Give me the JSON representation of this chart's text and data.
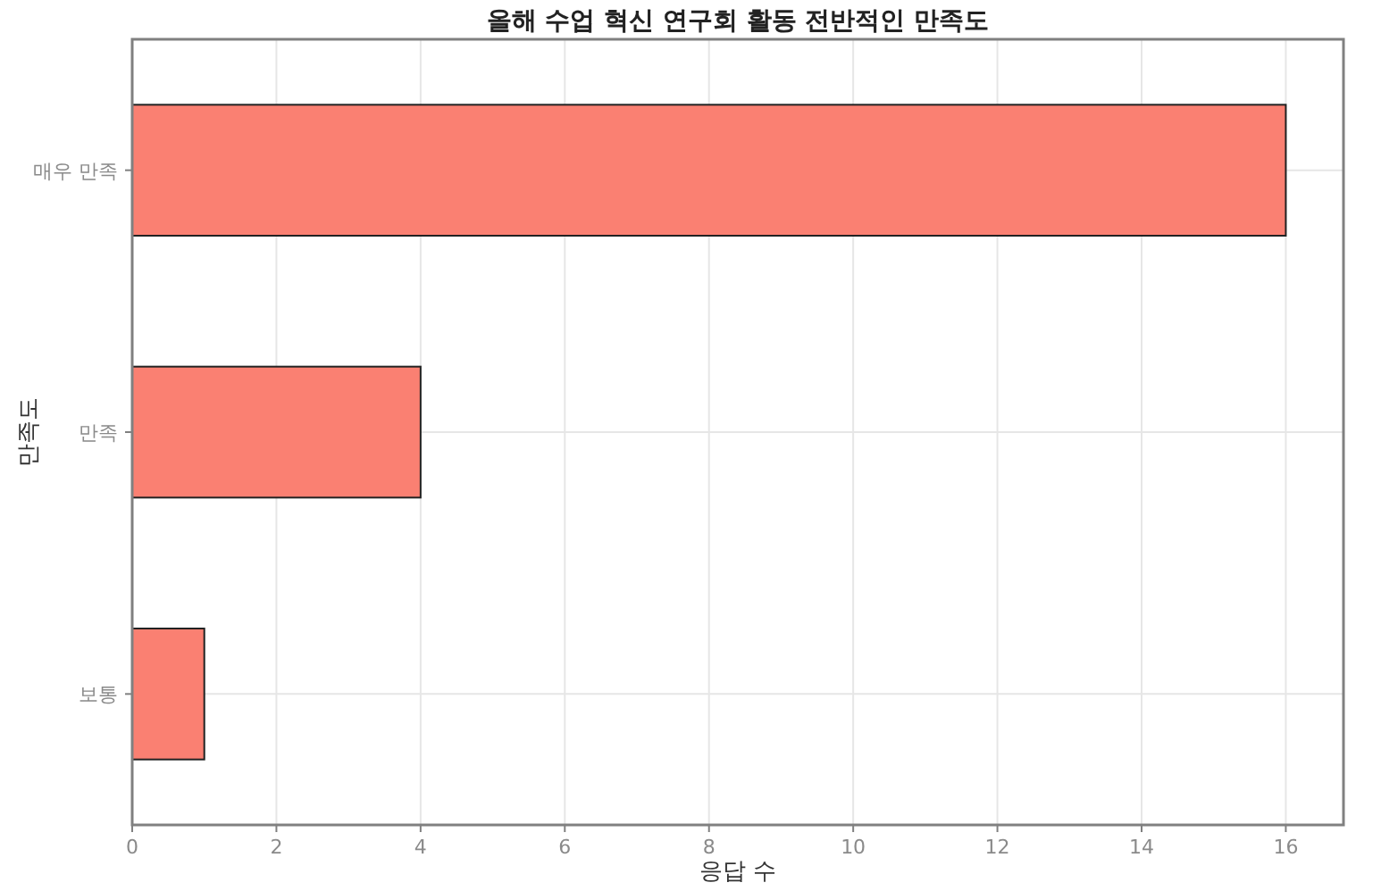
{
  "chart_data": {
    "type": "bar",
    "orientation": "horizontal",
    "title": "올해 수업 혁신 연구회 활동 전반적인 만족도",
    "xlabel": "응답 수",
    "ylabel": "만족도",
    "categories": [
      "매우 만족",
      "만족",
      "보통"
    ],
    "values": [
      16,
      4,
      1
    ],
    "color": "#fa8072",
    "xlim": [
      0,
      16.8
    ],
    "xticks": [
      0,
      2,
      4,
      6,
      8,
      10,
      12,
      14,
      16
    ],
    "grid": true
  }
}
